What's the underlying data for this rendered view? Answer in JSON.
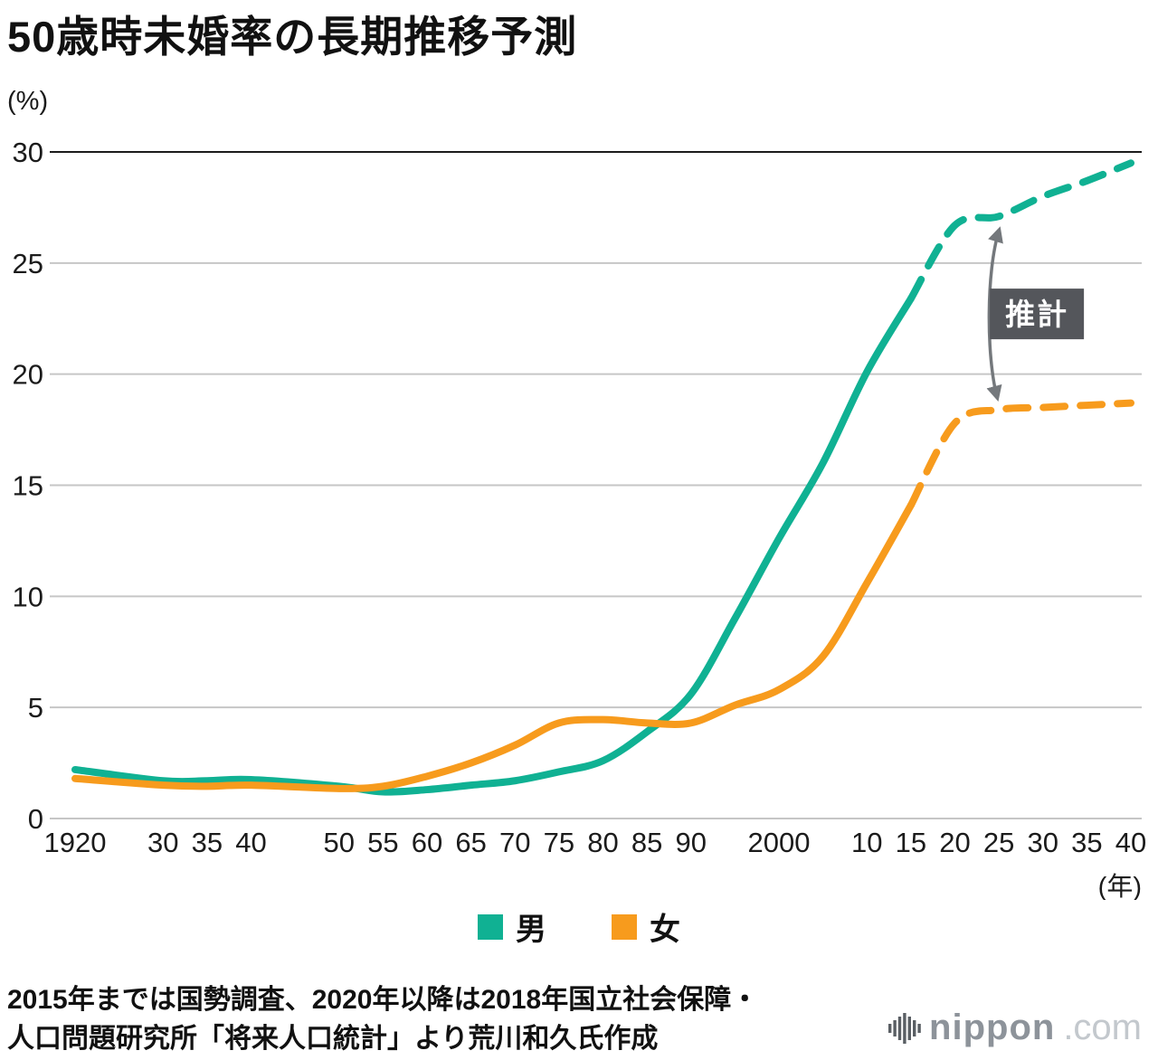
{
  "title": "50歳時未婚率の長期推移予測",
  "chart_data": {
    "type": "line",
    "title": "50歳時未婚率の長期推移予測",
    "y_unit": "(%)",
    "x_unit": "(年)",
    "ylim": [
      0,
      30
    ],
    "yticks": [
      0,
      5,
      10,
      15,
      20,
      25,
      30
    ],
    "xlim": [
      1920,
      2040
    ],
    "grid": "horizontal",
    "legend_position": "bottom",
    "x_ticks": [
      {
        "year": 1920,
        "label": "1920"
      },
      {
        "year": 1930,
        "label": "30"
      },
      {
        "year": 1935,
        "label": "35"
      },
      {
        "year": 1940,
        "label": "40"
      },
      {
        "year": 1950,
        "label": "50"
      },
      {
        "year": 1955,
        "label": "55"
      },
      {
        "year": 1960,
        "label": "60"
      },
      {
        "year": 1965,
        "label": "65"
      },
      {
        "year": 1970,
        "label": "70"
      },
      {
        "year": 1975,
        "label": "75"
      },
      {
        "year": 1980,
        "label": "80"
      },
      {
        "year": 1985,
        "label": "85"
      },
      {
        "year": 1990,
        "label": "90"
      },
      {
        "year": 2000,
        "label": "2000"
      },
      {
        "year": 2010,
        "label": "10"
      },
      {
        "year": 2015,
        "label": "15"
      },
      {
        "year": 2020,
        "label": "20"
      },
      {
        "year": 2025,
        "label": "25"
      },
      {
        "year": 2030,
        "label": "30"
      },
      {
        "year": 2035,
        "label": "35"
      },
      {
        "year": 2040,
        "label": "40"
      }
    ],
    "years": [
      1920,
      1930,
      1935,
      1940,
      1950,
      1955,
      1960,
      1965,
      1970,
      1975,
      1980,
      1985,
      1990,
      1995,
      2000,
      2005,
      2010,
      2015,
      2020,
      2025,
      2030,
      2035,
      2040
    ],
    "solid_until_year": 2015,
    "series": [
      {
        "id": "male",
        "name": "男",
        "color": "#10b193",
        "values": [
          2.2,
          1.7,
          1.7,
          1.75,
          1.45,
          1.2,
          1.3,
          1.5,
          1.7,
          2.1,
          2.6,
          3.9,
          5.6,
          9.0,
          12.6,
          16.0,
          20.1,
          23.4,
          26.7,
          27.1,
          28.0,
          28.7,
          29.5
        ]
      },
      {
        "id": "female",
        "name": "女",
        "color": "#f79b1d",
        "values": [
          1.8,
          1.5,
          1.45,
          1.5,
          1.35,
          1.45,
          1.9,
          2.5,
          3.3,
          4.3,
          4.45,
          4.3,
          4.3,
          5.1,
          5.8,
          7.3,
          10.6,
          14.1,
          17.8,
          18.4,
          18.5,
          18.6,
          18.7
        ]
      }
    ],
    "annotation": {
      "label": "推計",
      "arrow_year": 2025,
      "box_bg": "#54565b",
      "text_color": "#ffffff",
      "arrow_color": "#74787c"
    }
  },
  "legend": [
    {
      "label": "男",
      "color": "#10b193"
    },
    {
      "label": "女",
      "color": "#f79b1d"
    }
  ],
  "source_note": {
    "line1": "2015年までは国勢調査、2020年以降は2018年国立社会保障・",
    "line2": "人口問題研究所「将来人口統計」より荒川和久氏作成"
  },
  "logo": {
    "name": "nippon",
    "domain": ".com"
  }
}
